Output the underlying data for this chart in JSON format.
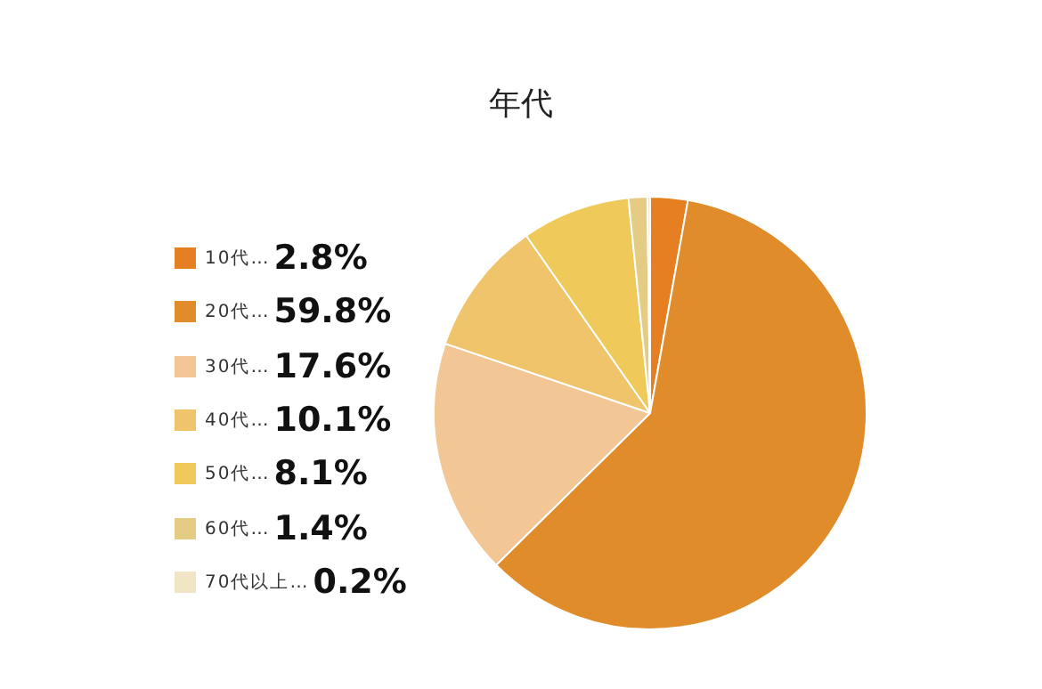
{
  "chart_data": {
    "type": "pie",
    "title": "年代",
    "categories": [
      "10代…",
      "20代…",
      "30代…",
      "40代…",
      "50代…",
      "60代…",
      "70代以上…"
    ],
    "values": [
      2.8,
      59.8,
      17.6,
      10.1,
      8.1,
      1.4,
      0.2
    ],
    "value_labels": [
      "2.8%",
      "59.8%",
      "17.6%",
      "10.1%",
      "8.1%",
      "1.4%",
      "0.2%"
    ],
    "colors": [
      "#e57f22",
      "#e08c2a",
      "#f2c795",
      "#f0c46a",
      "#efc95a",
      "#e4cc85",
      "#f0e6c6"
    ],
    "legend": "left"
  }
}
